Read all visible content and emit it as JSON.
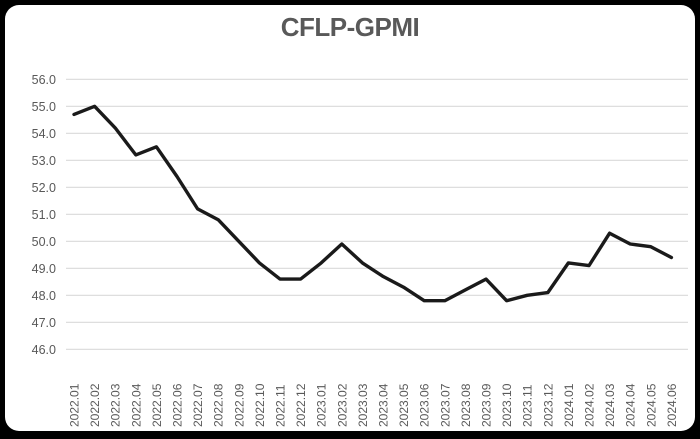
{
  "window": {
    "background": "#000000",
    "card_background": "#ffffff"
  },
  "chart_data": {
    "type": "line",
    "title": "CFLP-GPMI",
    "categories": [
      "2022.01",
      "2022.02",
      "2022.03",
      "2022.04",
      "2022.05",
      "2022.06",
      "2022.07",
      "2022.08",
      "2022.09",
      "2022.10",
      "2022.11",
      "2022.12",
      "2023.01",
      "2023.02",
      "2023.03",
      "2023.04",
      "2023.05",
      "2023.06",
      "2023.07",
      "2023.08",
      "2023.09",
      "2023.10",
      "2023.11",
      "2023.12",
      "2024.01",
      "2024.02",
      "2024.03",
      "2024.04",
      "2024.05",
      "2024.06"
    ],
    "values": [
      54.7,
      55.0,
      54.2,
      53.2,
      53.5,
      52.4,
      51.2,
      50.8,
      50.0,
      49.2,
      48.6,
      48.6,
      49.2,
      49.9,
      49.2,
      48.7,
      48.3,
      47.8,
      47.8,
      48.2,
      48.6,
      47.8,
      48.0,
      48.1,
      49.2,
      49.1,
      50.3,
      49.9,
      49.8,
      49.4
    ],
    "xlabel": "",
    "ylabel": "",
    "ylim": [
      46.0,
      56.0
    ],
    "y_tick_step": 1.0,
    "y_tick_labels": [
      "56.0",
      "55.0",
      "54.0",
      "53.0",
      "52.0",
      "51.0",
      "50.0",
      "49.0",
      "48.0",
      "47.0",
      "46.0"
    ],
    "grid": "horizontal",
    "legend": "none",
    "colors": {
      "line": "#1a1a1a",
      "grid": "#d9d9d9",
      "tick_label": "#595959",
      "title": "#595959"
    }
  }
}
